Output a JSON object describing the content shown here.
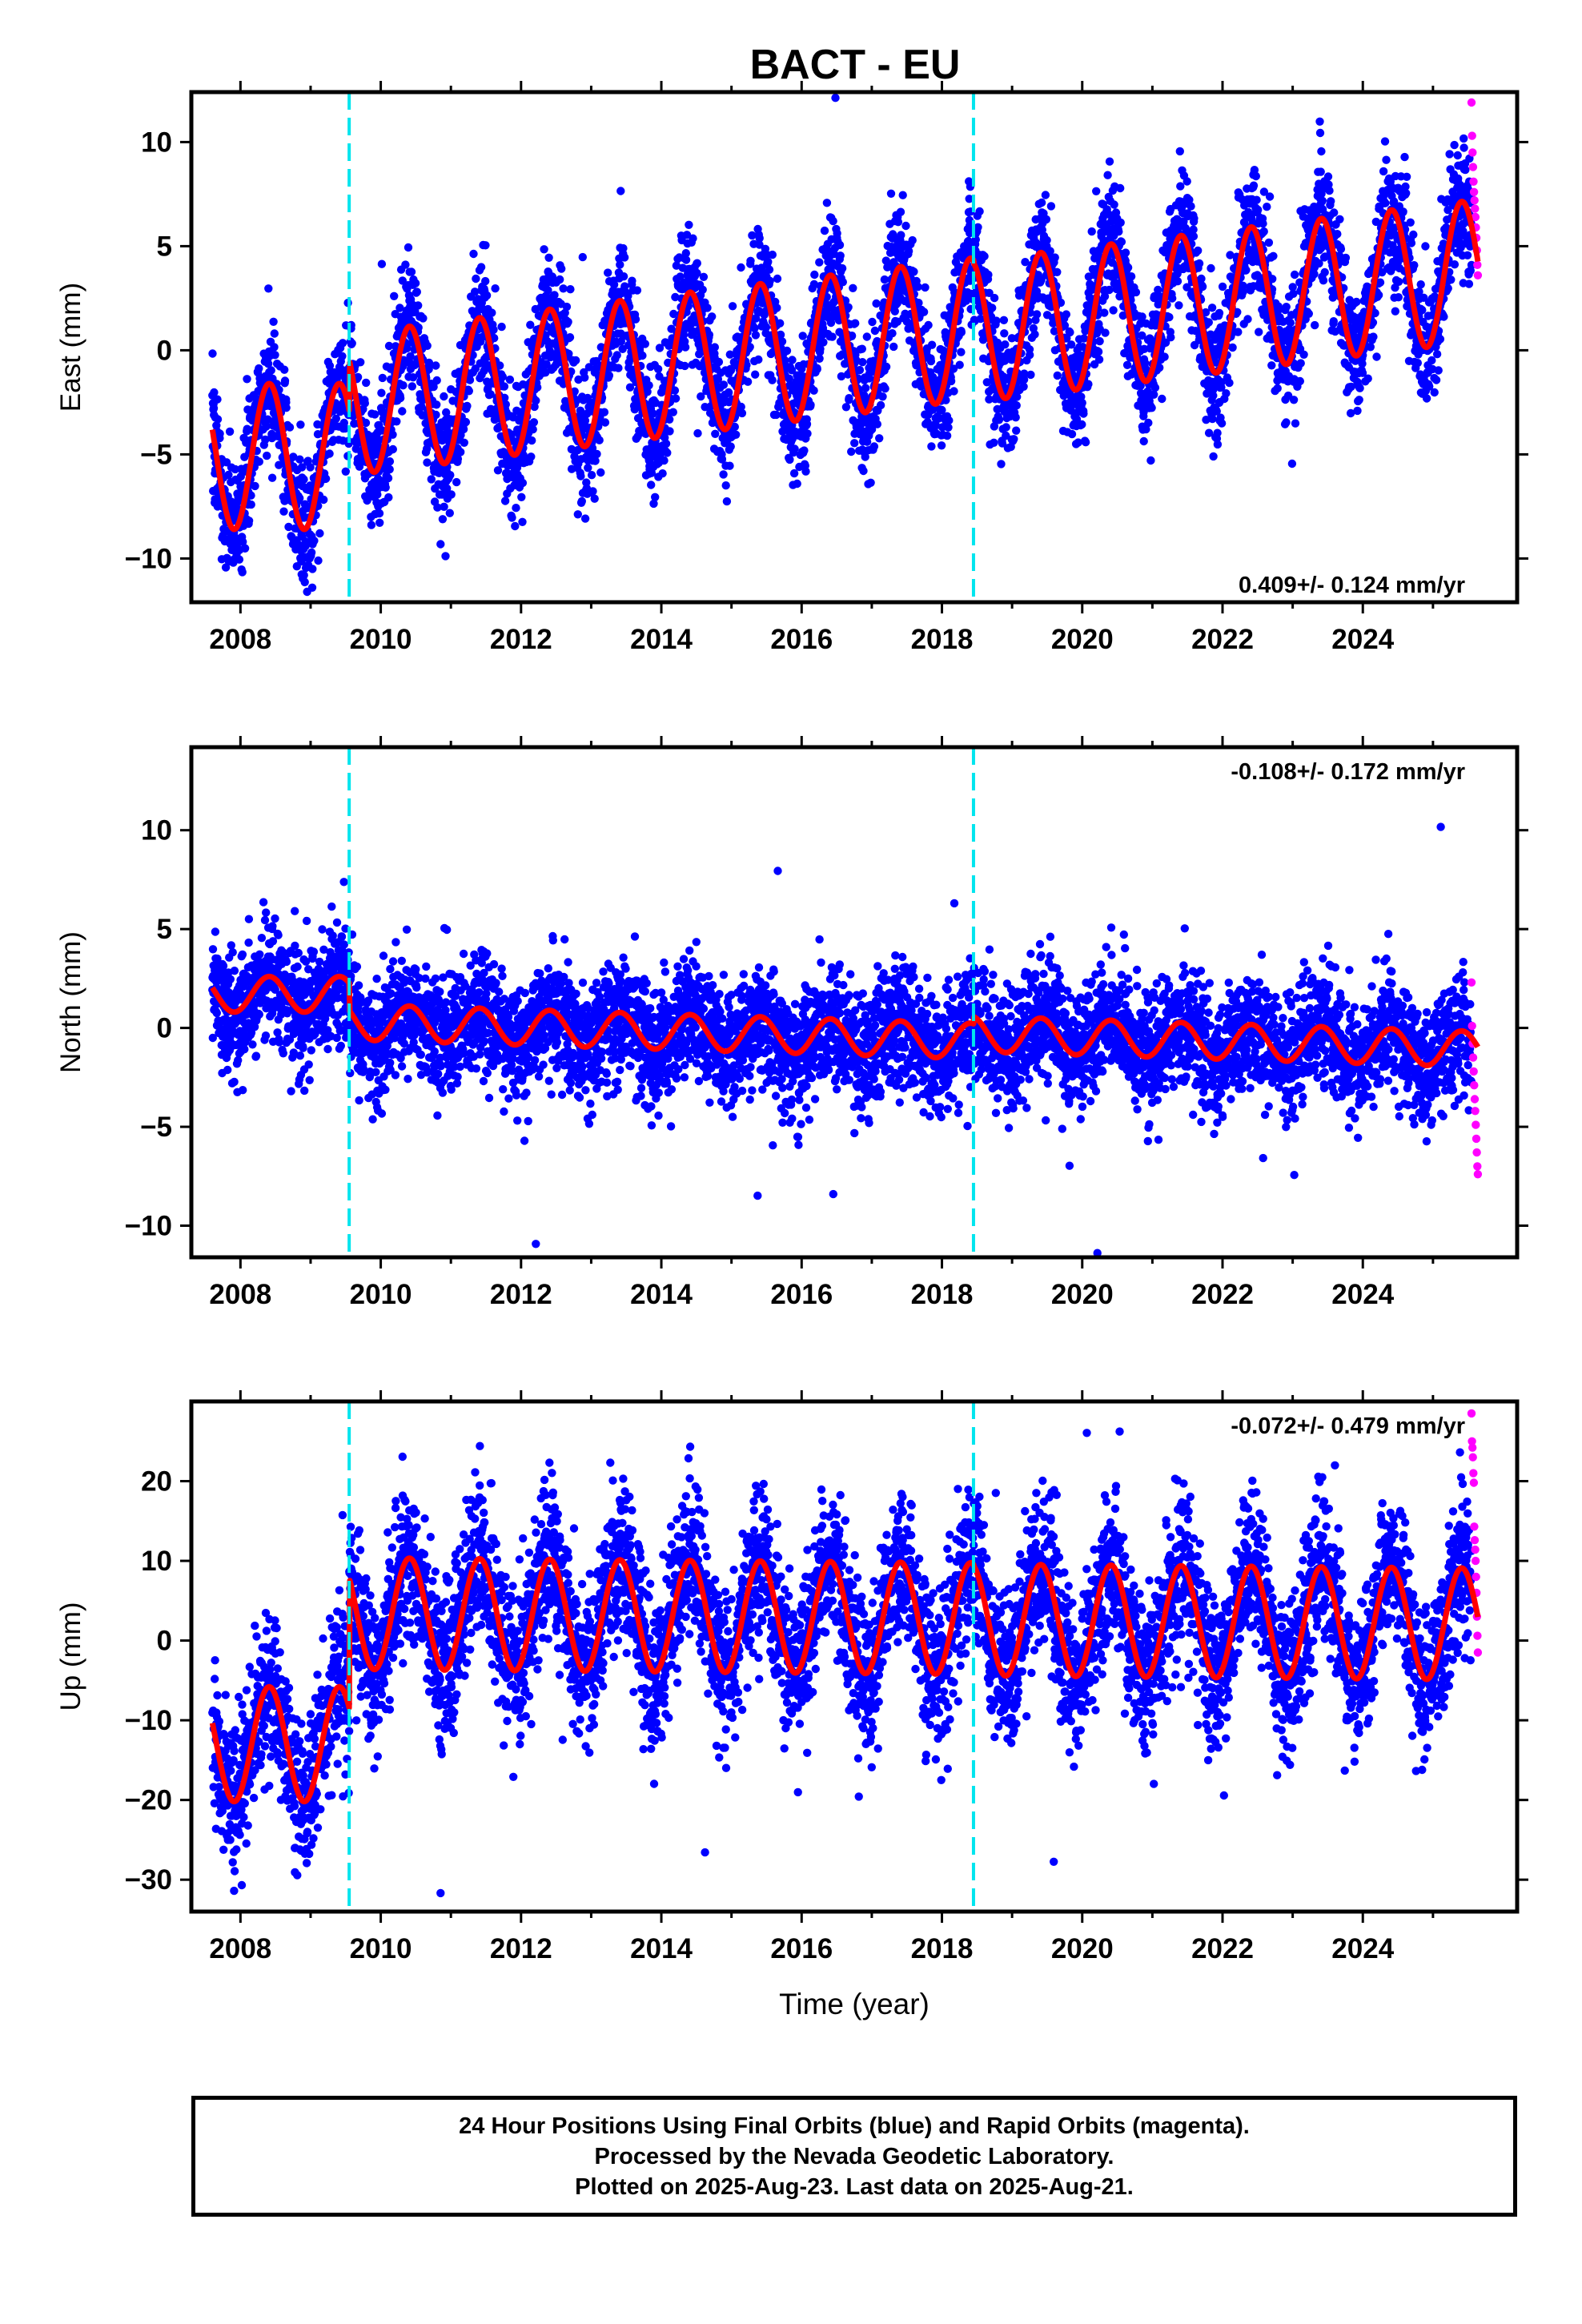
{
  "colors": {
    "final_orbits": "#0000ff",
    "rapid_orbits": "#ff00ff",
    "model_fit": "#ff0000",
    "equipment_change": "#00e5ee"
  },
  "chart_data": {
    "type": "scatter",
    "title": "BACT - EU",
    "xlabel": "Time (year)",
    "xlim": [
      2007.3,
      2026.2
    ],
    "xticks": [
      2008,
      2010,
      2012,
      2014,
      2016,
      2018,
      2020,
      2022,
      2024
    ],
    "discontinuities": [
      2009.55,
      2018.45
    ],
    "final_orbits_range": [
      2007.6,
      2025.55
    ],
    "rapid_orbits_range": [
      2025.55,
      2025.64
    ],
    "panels": [
      {
        "name": "East",
        "ylabel": "East (mm)",
        "ylim": [
          -12.1,
          12.4
        ],
        "yticks": [
          -10,
          -5,
          0,
          5,
          10
        ],
        "rate_label": "0.409+/- 0.124 mm/yr",
        "rate_position": "bottom-right",
        "series": [
          {
            "name": "Final Orbits",
            "color": "blue",
            "kind": "points",
            "scatter_sd": 1.5
          },
          {
            "name": "Rapid Orbits",
            "color": "magenta",
            "kind": "points",
            "values": [
              11.9,
              10.3,
              9.5,
              8.8,
              8.1,
              7.6,
              7.2,
              6.8,
              6.4,
              5.9,
              5.4,
              4.8,
              4.1,
              3.6
            ]
          },
          {
            "name": "Model",
            "color": "red",
            "kind": "line",
            "segments": [
              {
                "x0": 2007.6,
                "x1": 2009.55,
                "offset": -5.1,
                "rate": 0.0,
                "annual_amp": 3.5
              },
              {
                "x0": 2009.55,
                "x1": 2018.45,
                "offset": -2.6,
                "rate": 0.409,
                "annual_amp": 3.4
              },
              {
                "x0": 2018.45,
                "x1": 2025.64,
                "offset": 0.9,
                "rate": 0.409,
                "annual_amp": 3.4
              }
            ]
          }
        ]
      },
      {
        "name": "North",
        "ylabel": "North (mm)",
        "ylim": [
          -11.6,
          14.2
        ],
        "yticks": [
          -10,
          -5,
          0,
          5,
          10
        ],
        "rate_label": "-0.108+/- 0.172 mm/yr",
        "rate_position": "top-right",
        "series": [
          {
            "name": "Final Orbits",
            "color": "blue",
            "kind": "points",
            "scatter_sd": 1.5
          },
          {
            "name": "Rapid Orbits",
            "color": "magenta",
            "kind": "points",
            "values": [
              2.3,
              0.1,
              -0.8,
              -1.5,
              -2.2,
              -2.9,
              -3.6,
              -4.2,
              -4.9,
              -5.6,
              -6.3,
              -7.0,
              -7.4
            ]
          },
          {
            "name": "Model",
            "color": "red",
            "kind": "line",
            "segments": [
              {
                "x0": 2007.6,
                "x1": 2009.55,
                "offset": 1.7,
                "rate": 0.0,
                "annual_amp": 0.9
              },
              {
                "x0": 2009.55,
                "x1": 2018.45,
                "offset": 0.3,
                "rate": -0.108,
                "annual_amp": 0.9
              },
              {
                "x0": 2018.45,
                "x1": 2025.64,
                "offset": -0.3,
                "rate": -0.108,
                "annual_amp": 0.9
              }
            ]
          }
        ]
      },
      {
        "name": "Up",
        "ylabel": "Up (mm)",
        "ylim": [
          -34,
          30
        ],
        "yticks": [
          -30,
          -20,
          -10,
          0,
          10,
          20
        ],
        "rate_label": "-0.072+/- 0.479 mm/yr",
        "rate_position": "top-right",
        "xlabel": "Time (year)",
        "series": [
          {
            "name": "Final Orbits",
            "color": "blue",
            "kind": "points",
            "scatter_sd": 4.8
          },
          {
            "name": "Rapid Orbits",
            "color": "magenta",
            "kind": "points",
            "values": [
              28.5,
              25.0,
              24.2,
              23.0,
              21.0,
              19.8,
              14.3,
              12.6,
              11.4,
              10.0,
              8.0,
              6.0,
              3.0,
              0.6,
              -1.5
            ]
          },
          {
            "name": "Model",
            "color": "red",
            "kind": "line",
            "segments": [
              {
                "x0": 2007.6,
                "x1": 2009.55,
                "offset": -13.0,
                "rate": 0.0,
                "annual_amp": 7.2
              },
              {
                "x0": 2009.55,
                "x1": 2018.45,
                "offset": 3.4,
                "rate": -0.072,
                "annual_amp": 7.0
              },
              {
                "x0": 2018.45,
                "x1": 2025.64,
                "offset": 2.6,
                "rate": -0.072,
                "annual_amp": 7.0
              }
            ]
          }
        ]
      }
    ]
  },
  "footer": {
    "line1": "24 Hour Positions Using Final Orbits (blue) and Rapid Orbits (magenta).",
    "line2": "Processed by the Nevada Geodetic Laboratory.",
    "line3": "Plotted on 2025-Aug-23. Last data on 2025-Aug-21."
  }
}
